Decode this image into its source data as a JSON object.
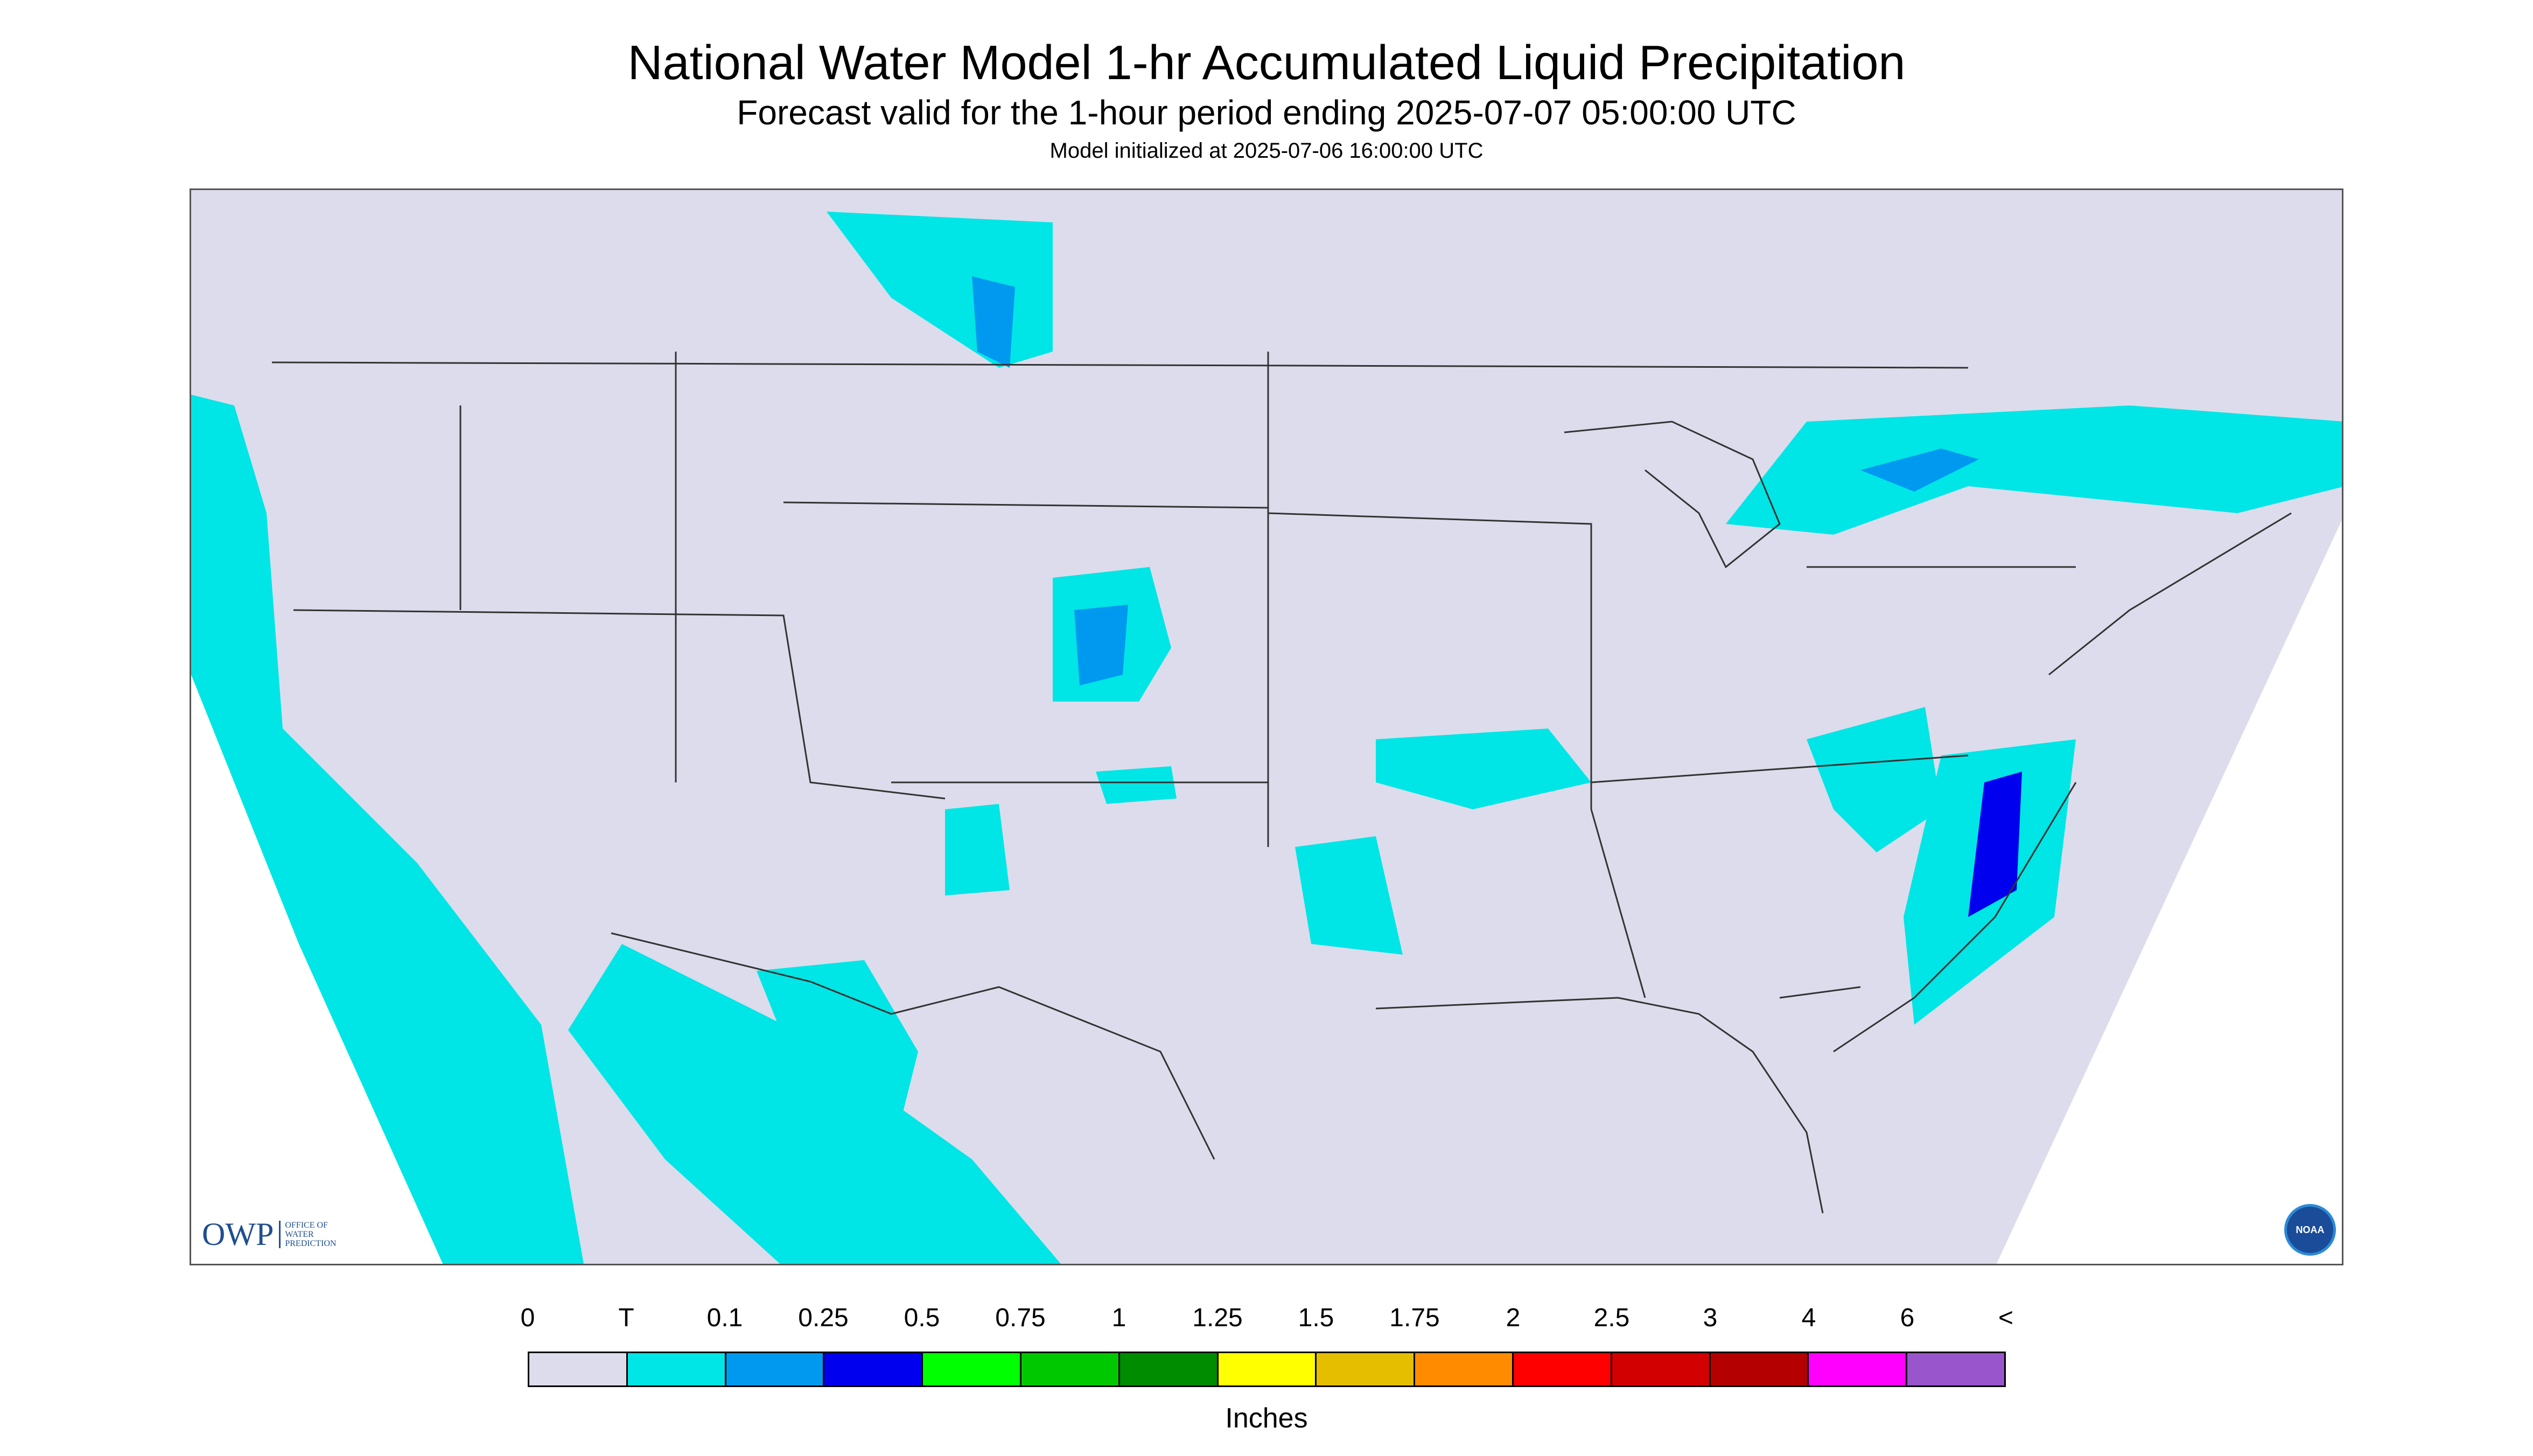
{
  "title": "National Water Model 1-hr Accumulated Liquid Precipitation",
  "subtitle": "Forecast valid for the 1-hour period ending 2025-07-07 05:00:00 UTC",
  "init_line": "Model initialized at 2025-07-06 16:00:00 UTC",
  "logos": {
    "owp": {
      "mark": "OWP",
      "text_lines": [
        "OFFICE OF",
        "WATER",
        "PREDICTION"
      ]
    },
    "noaa": {
      "text": "NOAA"
    }
  },
  "legend": {
    "labels": [
      "0",
      "T",
      "0.1",
      "0.25",
      "0.5",
      "0.75",
      "1",
      "1.25",
      "1.5",
      "1.75",
      "2",
      "2.5",
      "3",
      "4",
      "6",
      "<"
    ],
    "colors": [
      "#dcdcec",
      "#00e5e5",
      "#0099f0",
      "#0000ee",
      "#00ff00",
      "#00c800",
      "#008c00",
      "#ffff00",
      "#e6be00",
      "#ff8c00",
      "#ff0000",
      "#d20000",
      "#b40000",
      "#ff00ff",
      "#9955cc"
    ],
    "units": "Inches"
  },
  "colors": {
    "map_background": "#dcdcec",
    "outside_domain": "#ffffff",
    "boundary_lines": "#333333"
  }
}
